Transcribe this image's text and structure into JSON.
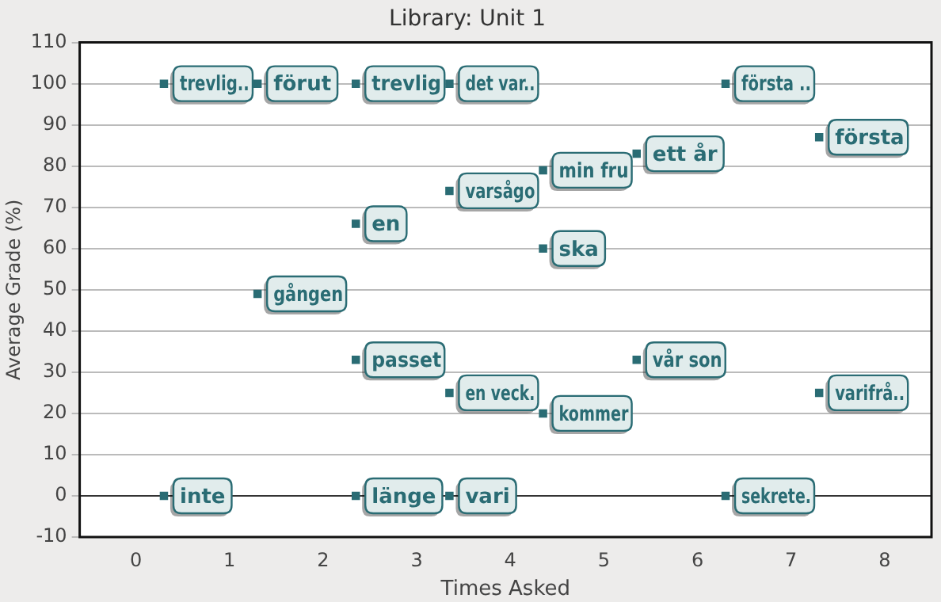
{
  "chart_data": {
    "type": "scatter",
    "title": "Library: Unit 1",
    "xlabel": "Times Asked",
    "ylabel": "Average Grade (%)",
    "xlim": [
      -0.6,
      8.5
    ],
    "xticks": [
      0,
      1,
      2,
      3,
      4,
      5,
      6,
      7,
      8
    ],
    "ylim": [
      -10,
      110
    ],
    "yticks": [
      -10,
      0,
      10,
      20,
      30,
      40,
      50,
      60,
      70,
      80,
      90,
      100,
      110
    ],
    "grid": "y",
    "legend": false,
    "marker": "square",
    "ref_lines": [
      {
        "axis": "y",
        "value": 0,
        "color": "#333333"
      }
    ],
    "series": [
      {
        "color": "#2a6c74",
        "x": [
          0.3,
          1.3,
          2.35,
          3.35,
          6.3,
          7.3,
          5.35,
          4.35,
          3.35,
          2.35,
          4.35,
          1.3,
          2.35,
          5.35,
          3.35,
          4.35,
          7.3,
          0.3,
          2.35,
          3.35,
          6.3
        ],
        "values": [
          100,
          100,
          100,
          100,
          100,
          87,
          83,
          79,
          74,
          66,
          60,
          49,
          33,
          33,
          25,
          20,
          25,
          0,
          0,
          0,
          0
        ],
        "value_labels": [
          "trevlig..",
          "förut",
          "trevlig",
          "det var..",
          "första ..",
          "första",
          "ett år",
          "min fru",
          "varsågo",
          "en",
          "ska",
          "gången",
          "passet",
          "vår son",
          "en veck.",
          "kommer",
          "varifrå..",
          "inte",
          "länge",
          "vari",
          "sekrete."
        ]
      }
    ]
  }
}
